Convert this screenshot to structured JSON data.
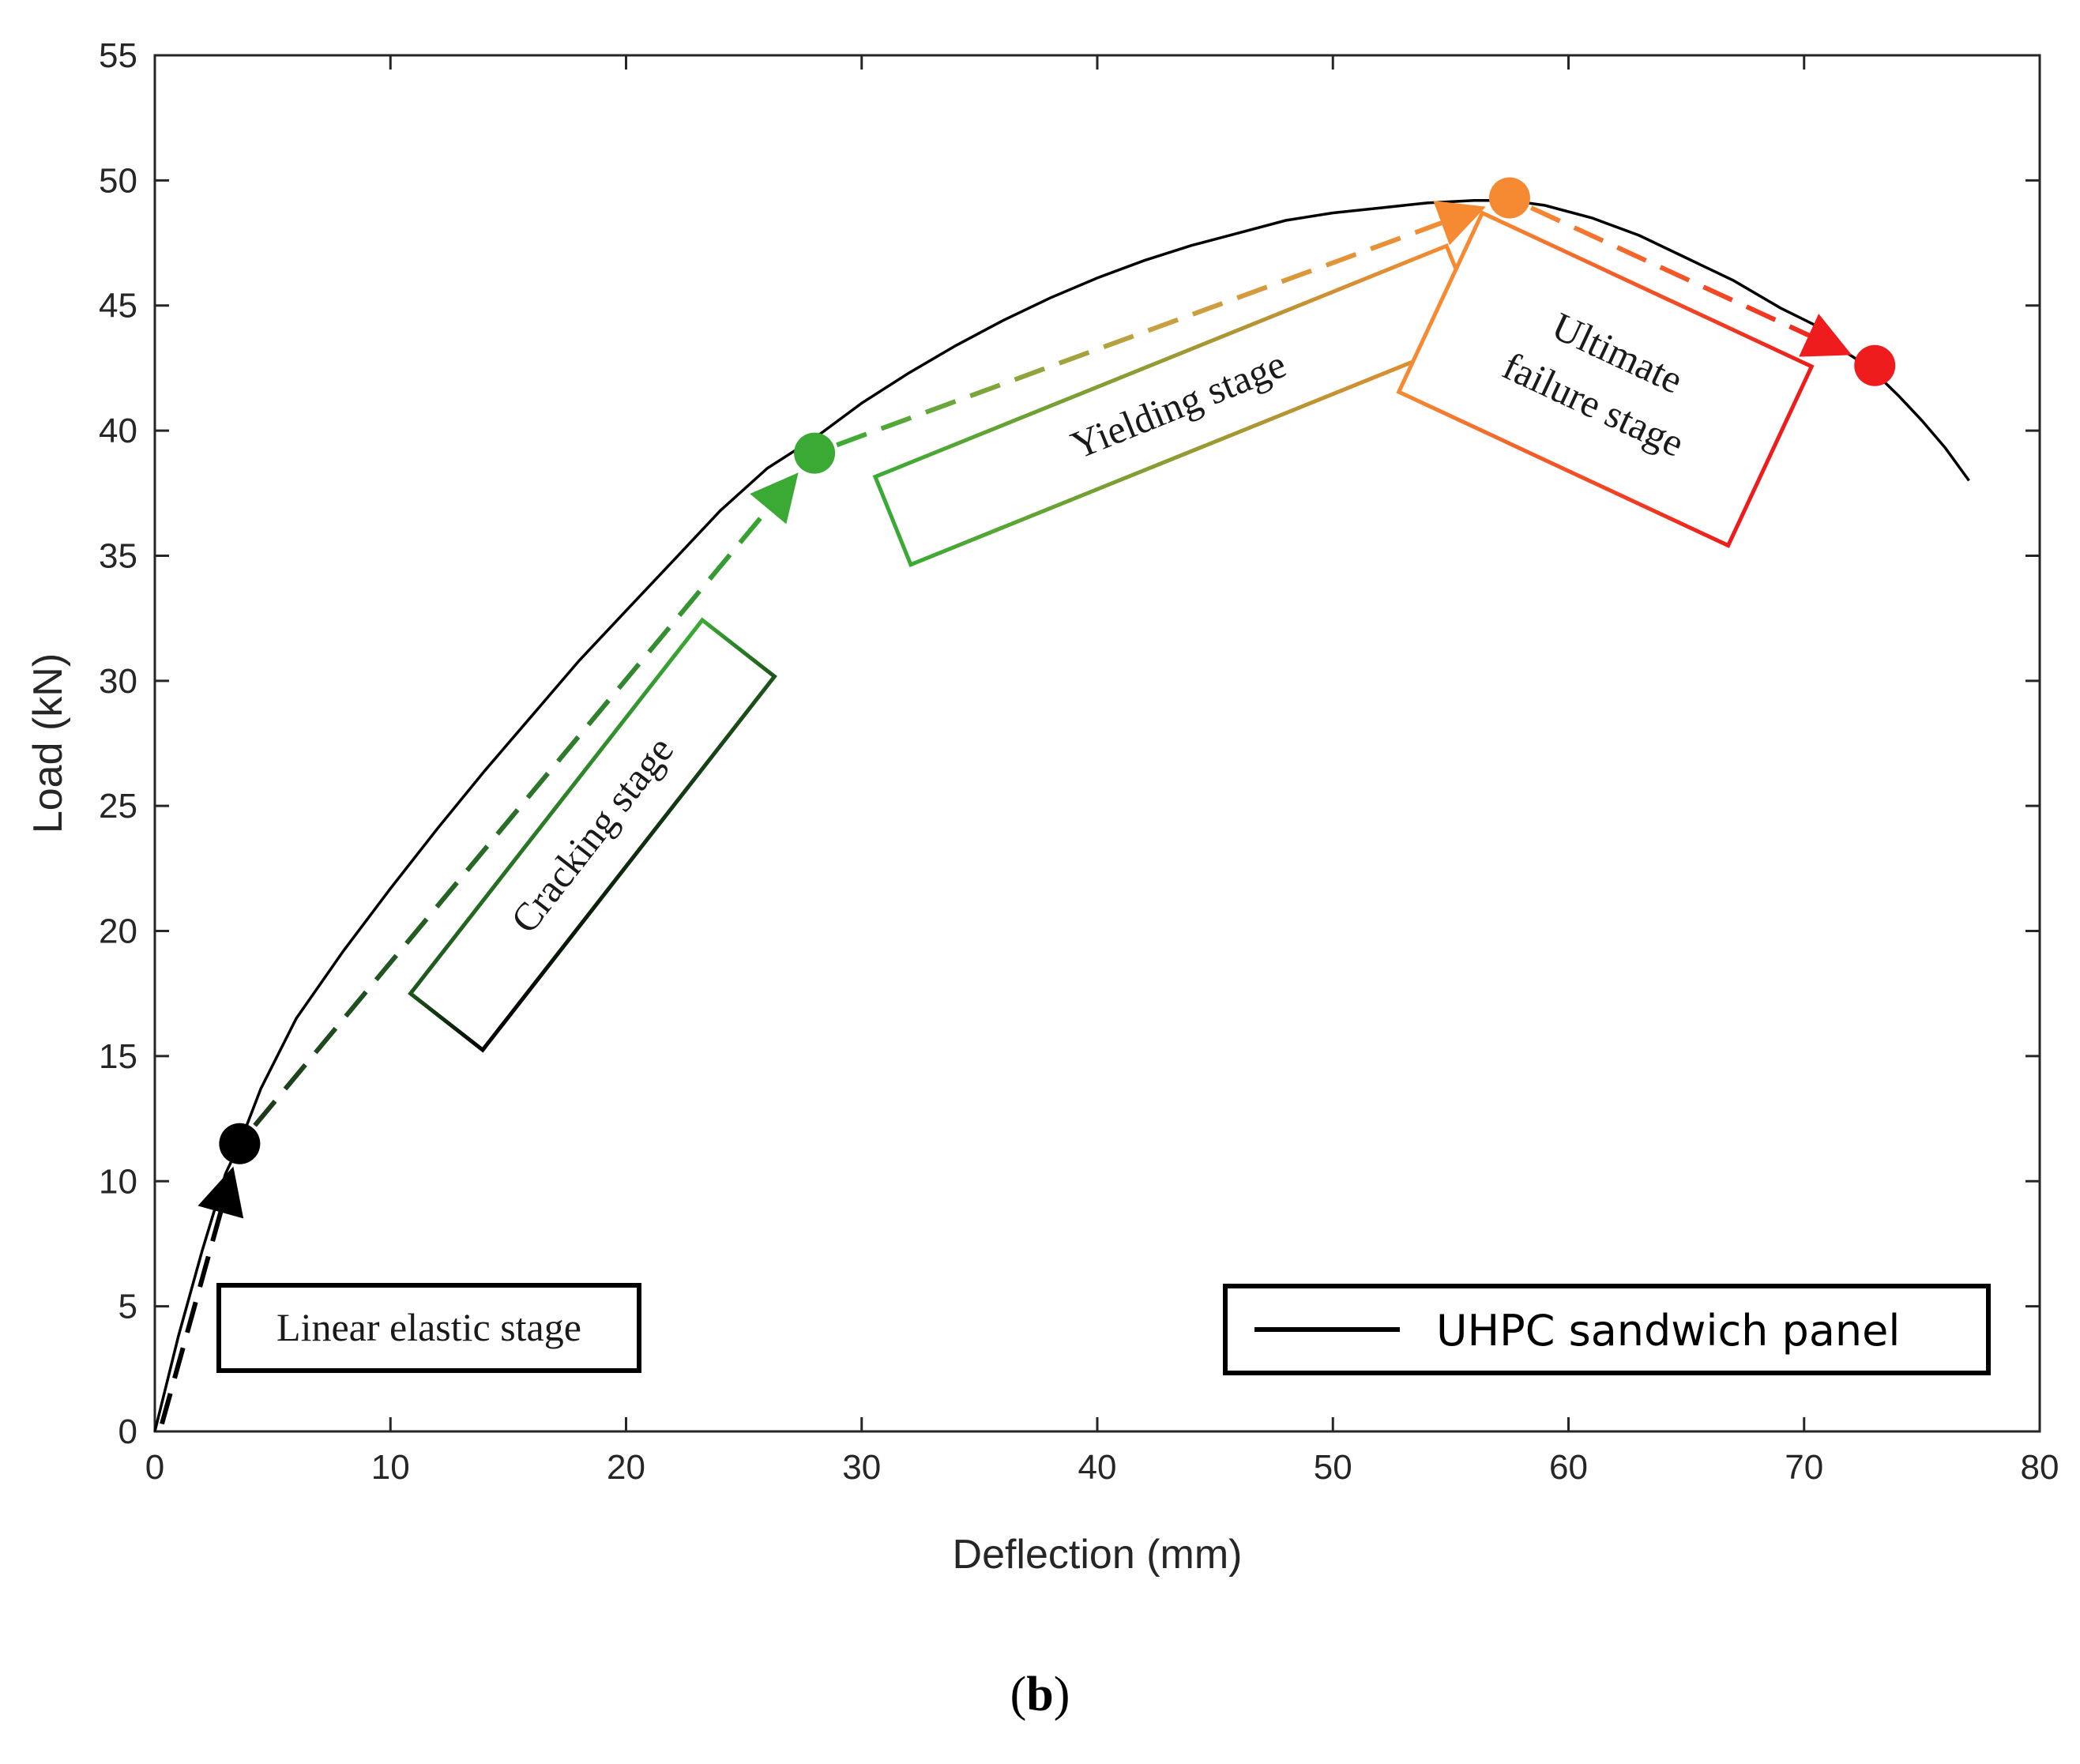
{
  "chart_data": {
    "type": "line",
    "title": "",
    "xlabel": "Deflection (mm)",
    "ylabel": "Load (kN)",
    "xlim": [
      0,
      80
    ],
    "ylim": [
      0,
      55
    ],
    "xticks": [
      0,
      10,
      20,
      30,
      40,
      50,
      60,
      70,
      80
    ],
    "yticks": [
      0,
      5,
      10,
      15,
      20,
      25,
      30,
      35,
      40,
      45,
      50,
      55
    ],
    "grid": false,
    "legend_position": "bottom-right",
    "series": [
      {
        "name": "UHPC sandwich panel",
        "color": "#000000",
        "x": [
          0,
          1,
          2,
          3,
          3.6,
          4.5,
          6,
          8,
          10,
          12,
          14,
          16,
          18,
          20,
          22,
          24,
          26,
          28,
          30,
          32,
          34,
          36,
          38,
          40,
          42,
          44,
          46,
          48,
          50,
          52,
          54,
          56,
          57.5,
          59,
          61,
          63,
          65,
          67,
          69,
          70.5,
          71.5,
          72.8,
          74,
          75,
          76,
          77
        ],
        "y": [
          0,
          3.8,
          7.2,
          10.3,
          11.5,
          13.7,
          16.5,
          19.2,
          21.7,
          24.1,
          26.4,
          28.6,
          30.8,
          32.8,
          34.8,
          36.8,
          38.5,
          39.7,
          41.1,
          42.3,
          43.4,
          44.4,
          45.3,
          46.1,
          46.8,
          47.4,
          47.9,
          48.4,
          48.7,
          48.9,
          49.1,
          49.2,
          49.2,
          49.0,
          48.5,
          47.8,
          46.9,
          46.0,
          44.9,
          44.2,
          43.3,
          42.5,
          41.4,
          40.4,
          39.3,
          38.0
        ]
      }
    ],
    "stage_points": [
      {
        "x": 3.6,
        "y": 11.5,
        "color": "#000000"
      },
      {
        "x": 28,
        "y": 39.1,
        "color": "#3aaa35"
      },
      {
        "x": 57.5,
        "y": 49.3,
        "color": "#f58a32"
      },
      {
        "x": 73,
        "y": 42.6,
        "color": "#ee1c1c"
      }
    ],
    "annotations": [
      {
        "text": "Linear elastic stage"
      },
      {
        "text": "Cracking stage"
      },
      {
        "text": "Yielding stage"
      },
      {
        "text_lines": [
          "Ultimate",
          "failure stage"
        ]
      }
    ]
  },
  "legend": {
    "label": "UHPC sandwich panel"
  },
  "caption": {
    "prefix": "(",
    "label": "b",
    "suffix": ")"
  },
  "colors": {
    "black": "#000000",
    "green": "#3aaa35",
    "orange": "#f58a32",
    "red": "#ee1c1c",
    "axis": "#262626"
  }
}
